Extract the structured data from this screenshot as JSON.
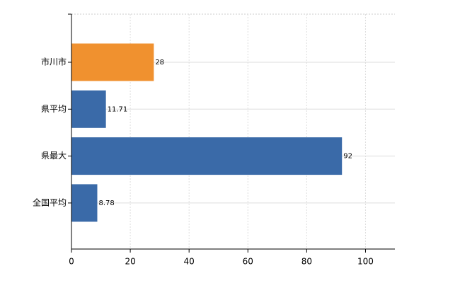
{
  "chart_data": {
    "type": "bar",
    "orientation": "horizontal",
    "categories": [
      "市川市",
      "県平均",
      "県最大",
      "全国平均"
    ],
    "values": [
      28,
      11.71,
      92,
      8.78
    ],
    "colors": [
      "#f0912f",
      "#3a6aa8",
      "#3a6aa8",
      "#3a6aa8"
    ],
    "xlim": [
      0,
      110
    ],
    "xticks": [
      0,
      20,
      40,
      60,
      80,
      100
    ],
    "grid": true
  }
}
